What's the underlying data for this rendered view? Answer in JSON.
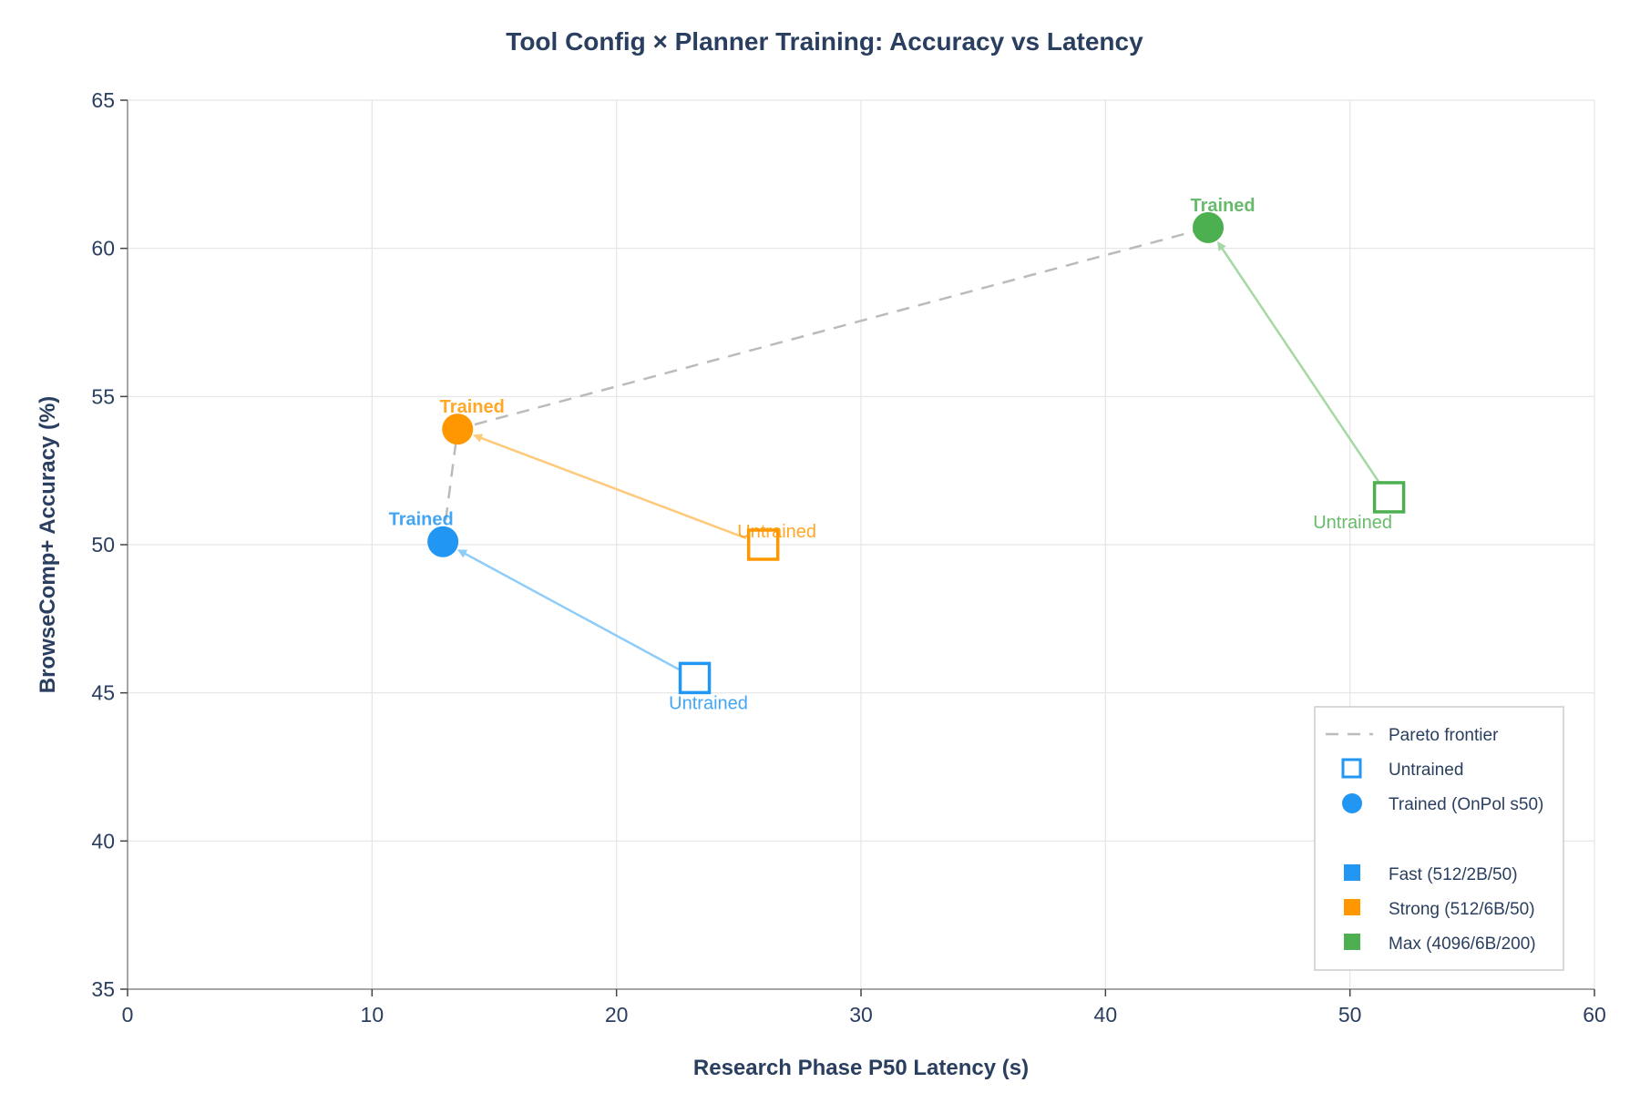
{
  "chart_data": {
    "type": "scatter",
    "title": "Tool Config × Planner Training: Accuracy vs Latency",
    "xlabel": "Research Phase P50 Latency (s)",
    "ylabel": "BrowseComp+ Accuracy (%)",
    "xlim": [
      0,
      60
    ],
    "ylim": [
      35,
      65
    ],
    "xticks": [
      0,
      10,
      20,
      30,
      40,
      50,
      60
    ],
    "yticks": [
      35,
      40,
      45,
      50,
      55,
      60,
      65
    ],
    "grid": true,
    "legend_position": "bottom-right",
    "series": [
      {
        "name": "Fast (512/2B/50)",
        "color": "#2196F3",
        "arrow_color": "#8ecdf7",
        "untrained": {
          "x": 23.2,
          "y": 45.5,
          "label": "Untrained"
        },
        "trained": {
          "x": 12.9,
          "y": 50.1,
          "label": "Trained"
        }
      },
      {
        "name": "Strong (512/6B/50)",
        "color": "#FF9800",
        "arrow_color": "#ffc97a",
        "untrained": {
          "x": 26.0,
          "y": 50.0,
          "label": "Untrained"
        },
        "trained": {
          "x": 13.5,
          "y": 53.9,
          "label": "Trained"
        }
      },
      {
        "name": "Max (4096/6B/200)",
        "color": "#4CAF50",
        "arrow_color": "#a3d9a5",
        "untrained": {
          "x": 51.6,
          "y": 51.6,
          "label": "Untrained"
        },
        "trained": {
          "x": 44.2,
          "y": 60.7,
          "label": "Trained"
        }
      }
    ],
    "pareto_frontier": {
      "name": "Pareto frontier",
      "x": [
        12.9,
        13.5,
        44.2
      ],
      "y": [
        50.1,
        53.9,
        60.7
      ],
      "color": "#bbbbbb"
    },
    "legend": {
      "pareto": "Pareto frontier",
      "untrained": "Untrained",
      "trained": "Trained (OnPol s50)",
      "marker_color": "#2196F3",
      "configs": [
        "Fast (512/2B/50)",
        "Strong (512/6B/50)",
        "Max (4096/6B/200)"
      ]
    }
  }
}
